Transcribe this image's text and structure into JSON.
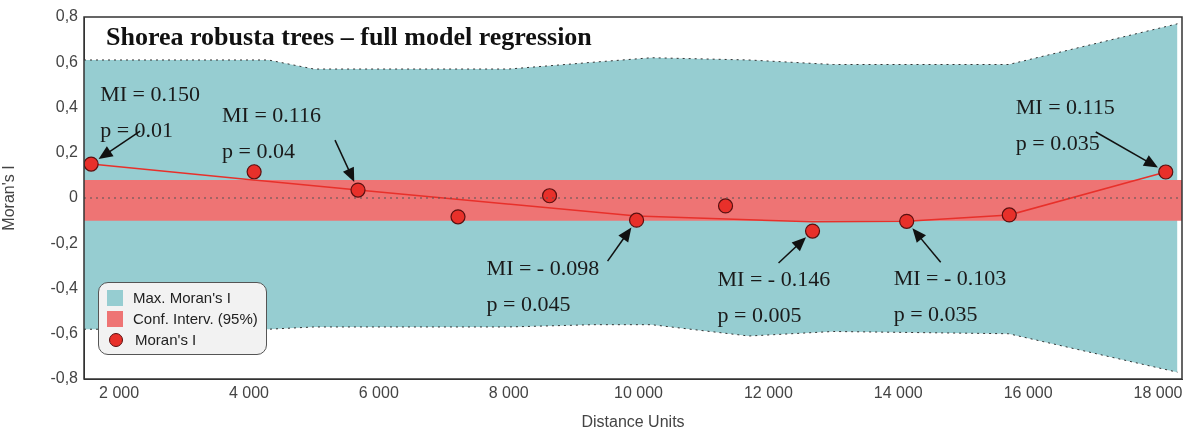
{
  "chart_data": {
    "type": "scatter",
    "title": "Shorea robusta trees – full model regression",
    "xlabel": "Distance Units",
    "ylabel": "Moran's I",
    "xlim": [
      1460,
      18370
    ],
    "ylim": [
      -0.8,
      0.8
    ],
    "xticks": [
      {
        "value": 2000,
        "label": "2 000"
      },
      {
        "value": 4000,
        "label": "4 000"
      },
      {
        "value": 6000,
        "label": "6 000"
      },
      {
        "value": 8000,
        "label": "8 000"
      },
      {
        "value": 10000,
        "label": "10 000"
      },
      {
        "value": 12000,
        "label": "12 000"
      },
      {
        "value": 14000,
        "label": "14 000"
      },
      {
        "value": 16000,
        "label": "16 000"
      },
      {
        "value": 18000,
        "label": "18 000"
      }
    ],
    "yticks": [
      {
        "value": -0.8,
        "label": "-0,8"
      },
      {
        "value": -0.6,
        "label": "-0,6"
      },
      {
        "value": -0.4,
        "label": "-0,4"
      },
      {
        "value": -0.2,
        "label": "-0,2"
      },
      0,
      {
        "value": 0.2,
        "label": "0,2"
      },
      {
        "value": 0.4,
        "label": "0,4"
      },
      {
        "value": 0.6,
        "label": "0,6"
      },
      {
        "value": 0.8,
        "label": "0,8"
      }
    ],
    "grid": false,
    "legend": "bottom left",
    "series": [
      {
        "name": "Max. Moran's I",
        "type": "area",
        "color": "#96cdd1",
        "line_style": "dotted",
        "x": [
          1460,
          4300,
          5000,
          8000,
          9300,
          10200,
          11700,
          13000,
          15700,
          18300
        ],
        "values": [
          0.61,
          0.61,
          0.57,
          0.57,
          0.6,
          0.62,
          0.61,
          0.59,
          0.59,
          0.77
        ]
      },
      {
        "type": "area",
        "color": "#96cdd1",
        "line_style": "dotted",
        "x": [
          1460,
          4300,
          5000,
          8000,
          9300,
          10200,
          11700,
          13000,
          15700,
          18300
        ],
        "values": [
          -0.58,
          -0.58,
          -0.57,
          -0.57,
          -0.56,
          -0.56,
          -0.61,
          -0.59,
          -0.6,
          -0.77
        ]
      },
      {
        "type": "line",
        "color": "#e8302a",
        "marker": "none",
        "x": [
          1570,
          5680,
          9970,
          12680,
          14130,
          15710,
          18120
        ],
        "values": [
          0.15,
          0.035,
          -0.08,
          -0.105,
          -0.103,
          -0.075,
          0.115
        ]
      },
      {
        "name": "Moran's I",
        "type": "scatter",
        "color": "#e8302a",
        "marker": "circle",
        "x": [
          1570,
          4080,
          5680,
          7220,
          8630,
          9970,
          11340,
          12680,
          14130,
          15710,
          18120
        ],
        "values": [
          0.15,
          0.116,
          0.035,
          -0.083,
          0.01,
          -0.098,
          -0.035,
          -0.146,
          -0.103,
          -0.075,
          0.115
        ]
      }
    ],
    "bands": [
      {
        "axis": "y",
        "from": -0.1,
        "to": 0.08,
        "label": "Conf. Interv. (95%)",
        "color": "#ee7474"
      }
    ],
    "ref_lines": [
      {
        "axis": "y",
        "value": 0,
        "line_style": "dotted",
        "color": "#555555"
      }
    ],
    "annotations": [
      {
        "text": "MI = 0.150\np = 0.01",
        "x": 1570,
        "y": 0.15
      },
      {
        "text": "MI = 0.116\np = 0.04",
        "x": 5680,
        "y": 0.035
      },
      {
        "text": "MI = - 0.098\np = 0.045",
        "x": 9970,
        "y": -0.098
      },
      {
        "text": "MI = - 0.146\np = 0.005",
        "x": 12680,
        "y": -0.146
      },
      {
        "text": "MI = - 0.103\np = 0.035",
        "x": 14130,
        "y": -0.103
      },
      {
        "text": "MI = 0.115\np = 0.035",
        "x": 18120,
        "y": 0.115
      }
    ]
  }
}
